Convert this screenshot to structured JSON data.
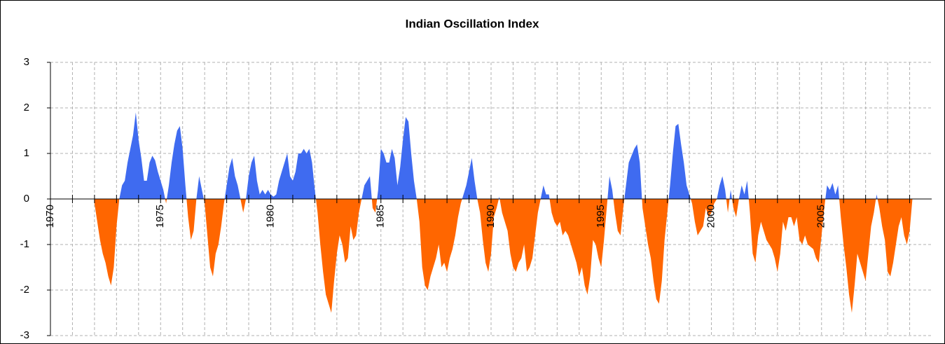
{
  "chart_data": {
    "type": "area",
    "title": "Indian Oscillation Index",
    "color_positive": "#3f6bf0",
    "color_negative": "#ff6600",
    "xlim": [
      1970,
      2010
    ],
    "xticks": [
      1970,
      1975,
      1980,
      1985,
      1990,
      1995,
      2000,
      2005
    ],
    "x_minor_ticks": [
      1970,
      1971,
      1972,
      1973,
      1974,
      1975,
      1976,
      1977,
      1978,
      1979,
      1980,
      1981,
      1982,
      1983,
      1984,
      1985,
      1986,
      1987,
      1988,
      1989,
      1990,
      1991,
      1992,
      1993,
      1994,
      1995,
      1996,
      1997,
      1998,
      1999,
      2000,
      2001,
      2002,
      2003,
      2004,
      2005,
      2006,
      2007,
      2008,
      2009
    ],
    "ylim": [
      -3,
      3
    ],
    "yticks": [
      -3,
      -2,
      -1,
      0,
      1,
      2,
      3
    ],
    "grid": true,
    "x": [
      1972,
      1972.125,
      1972.25,
      1972.375,
      1972.5,
      1972.625,
      1972.75,
      1972.875,
      1973,
      1973.125,
      1973.25,
      1973.375,
      1973.5,
      1973.625,
      1973.75,
      1973.875,
      1974,
      1974.125,
      1974.25,
      1974.375,
      1974.5,
      1974.625,
      1974.75,
      1974.875,
      1975,
      1975.125,
      1975.25,
      1975.375,
      1975.5,
      1975.625,
      1975.75,
      1975.875,
      1976,
      1976.125,
      1976.25,
      1976.375,
      1976.5,
      1976.625,
      1976.75,
      1976.875,
      1977,
      1977.125,
      1977.25,
      1977.375,
      1977.5,
      1977.625,
      1977.75,
      1977.875,
      1978,
      1978.125,
      1978.25,
      1978.375,
      1978.5,
      1978.625,
      1978.75,
      1978.875,
      1979,
      1979.125,
      1979.25,
      1979.375,
      1979.5,
      1979.625,
      1979.75,
      1979.875,
      1980,
      1980.125,
      1980.25,
      1980.375,
      1980.5,
      1980.625,
      1980.75,
      1980.875,
      1981,
      1981.125,
      1981.25,
      1981.375,
      1981.5,
      1981.625,
      1981.75,
      1981.875,
      1982,
      1982.125,
      1982.25,
      1982.375,
      1982.5,
      1982.625,
      1982.75,
      1982.875,
      1983,
      1983.125,
      1983.25,
      1983.375,
      1983.5,
      1983.625,
      1983.75,
      1983.875,
      1984,
      1984.125,
      1984.25,
      1984.375,
      1984.5,
      1984.625,
      1984.75,
      1984.875,
      1985,
      1985.125,
      1985.25,
      1985.375,
      1985.5,
      1985.625,
      1985.75,
      1985.875,
      1986,
      1986.125,
      1986.25,
      1986.375,
      1986.5,
      1986.625,
      1986.75,
      1986.875,
      1987,
      1987.125,
      1987.25,
      1987.375,
      1987.5,
      1987.625,
      1987.75,
      1987.875,
      1988,
      1988.125,
      1988.25,
      1988.375,
      1988.5,
      1988.625,
      1988.75,
      1988.875,
      1989,
      1989.125,
      1989.25,
      1989.375,
      1989.5,
      1989.625,
      1989.75,
      1989.875,
      1990,
      1990.125,
      1990.25,
      1990.375,
      1990.5,
      1990.625,
      1990.75,
      1990.875,
      1991,
      1991.125,
      1991.25,
      1991.375,
      1991.5,
      1991.625,
      1991.75,
      1991.875,
      1992,
      1992.125,
      1992.25,
      1992.375,
      1992.5,
      1992.625,
      1992.75,
      1992.875,
      1993,
      1993.125,
      1993.25,
      1993.375,
      1993.5,
      1993.625,
      1993.75,
      1993.875,
      1994,
      1994.125,
      1994.25,
      1994.375,
      1994.5,
      1994.625,
      1994.75,
      1994.875,
      1995,
      1995.125,
      1995.25,
      1995.375,
      1995.5,
      1995.625,
      1995.75,
      1995.875,
      1996,
      1996.125,
      1996.25,
      1996.375,
      1996.5,
      1996.625,
      1996.75,
      1996.875,
      1997,
      1997.125,
      1997.25,
      1997.375,
      1997.5,
      1997.625,
      1997.75,
      1997.875,
      1998,
      1998.125,
      1998.25,
      1998.375,
      1998.5,
      1998.625,
      1998.75,
      1998.875,
      1999,
      1999.125,
      1999.25,
      1999.375,
      1999.5,
      1999.625,
      1999.75,
      1999.875,
      2000,
      2000.125,
      2000.25,
      2000.375,
      2000.5,
      2000.625,
      2000.75,
      2000.875,
      2001,
      2001.125,
      2001.25,
      2001.375,
      2001.5,
      2001.625,
      2001.75,
      2001.875,
      2002,
      2002.125,
      2002.25,
      2002.375,
      2002.5,
      2002.625,
      2002.75,
      2002.875,
      2003,
      2003.125,
      2003.25,
      2003.375,
      2003.5,
      2003.625,
      2003.75,
      2003.875,
      2004,
      2004.125,
      2004.25,
      2004.375,
      2004.5,
      2004.625,
      2004.75,
      2004.875,
      2005,
      2005.125,
      2005.25,
      2005.375,
      2005.5,
      2005.625,
      2005.75,
      2005.875,
      2006,
      2006.125,
      2006.25,
      2006.375,
      2006.5,
      2006.625,
      2006.75,
      2006.875,
      2007,
      2007.125,
      2007.25,
      2007.375,
      2007.5,
      2007.625,
      2007.75,
      2007.875,
      2008,
      2008.125,
      2008.25,
      2008.375,
      2008.5,
      2008.625,
      2008.75,
      2008.875,
      2009,
      2009.125
    ],
    "values": [
      -0.1,
      -0.5,
      -0.9,
      -1.2,
      -1.4,
      -1.7,
      -1.9,
      -1.5,
      -0.6,
      0,
      0.3,
      0.4,
      0.8,
      1.1,
      1.4,
      1.9,
      1.3,
      0.9,
      0.4,
      0.4,
      0.8,
      0.95,
      0.85,
      0.6,
      0.4,
      0.2,
      -0.1,
      0.3,
      0.8,
      1.2,
      1.5,
      1.6,
      1.1,
      0.3,
      -0.4,
      -0.9,
      -0.7,
      0,
      0.5,
      0.2,
      -0.1,
      -0.8,
      -1.5,
      -1.7,
      -1.2,
      -1.0,
      -0.6,
      -0.1,
      0.3,
      0.7,
      0.9,
      0.5,
      0.3,
      0,
      -0.3,
      0,
      0.5,
      0.8,
      0.95,
      0.4,
      0.1,
      0.2,
      0.1,
      0.2,
      0.1,
      0.05,
      0.1,
      0.4,
      0.6,
      0.8,
      1.0,
      0.5,
      0.4,
      0.6,
      1.0,
      1.0,
      1.1,
      1.0,
      1.1,
      0.8,
      0.2,
      -0.3,
      -1.0,
      -1.6,
      -2.1,
      -2.3,
      -2.5,
      -1.8,
      -1.2,
      -0.8,
      -1.0,
      -1.4,
      -1.3,
      -0.6,
      -0.9,
      -0.8,
      -0.3,
      0,
      0.3,
      0.4,
      0.5,
      -0.2,
      -0.3,
      0.2,
      1.1,
      1.0,
      0.8,
      0.8,
      1.1,
      0.9,
      0.3,
      0.7,
      1.3,
      1.8,
      1.7,
      1.0,
      0.4,
      0,
      -0.5,
      -1.5,
      -1.9,
      -2.0,
      -1.7,
      -1.5,
      -1.3,
      -1.0,
      -1.5,
      -1.4,
      -1.6,
      -1.3,
      -1.1,
      -0.8,
      -0.4,
      -0.1,
      0.1,
      0.3,
      0.6,
      0.9,
      0.4,
      0,
      -0.3,
      -0.9,
      -1.4,
      -1.6,
      -1.2,
      -0.4,
      -0.2,
      0.05,
      -0.3,
      -0.5,
      -0.7,
      -1.2,
      -1.5,
      -1.6,
      -1.4,
      -1.3,
      -1.0,
      -1.6,
      -1.5,
      -1.3,
      -0.8,
      -0.3,
      0,
      0.3,
      0.1,
      0.1,
      -0.3,
      -0.5,
      -0.6,
      -0.5,
      -0.8,
      -0.7,
      -0.8,
      -1.0,
      -1.2,
      -1.4,
      -1.7,
      -1.5,
      -1.9,
      -2.1,
      -1.7,
      -0.9,
      -1.0,
      -1.3,
      -1.5,
      -0.9,
      -0.2,
      0.5,
      0.2,
      -0.3,
      -0.7,
      -0.8,
      -0.2,
      0.3,
      0.8,
      0.95,
      1.1,
      1.2,
      0.8,
      -0.2,
      -0.6,
      -1.0,
      -1.3,
      -1.8,
      -2.2,
      -2.3,
      -1.8,
      -0.9,
      -0.3,
      0.3,
      1.0,
      1.6,
      1.65,
      1.2,
      0.8,
      0.3,
      0.1,
      -0.1,
      -0.5,
      -0.8,
      -0.7,
      -0.6,
      -0.2,
      -0.4,
      -0.3,
      -0.1,
      0,
      0.3,
      0.5,
      0.2,
      -0.3,
      0.2,
      -0.2,
      -0.4,
      0,
      0.3,
      0.1,
      0.4,
      -0.3,
      -1.2,
      -1.4,
      -0.8,
      -0.5,
      -0.7,
      -0.9,
      -1.0,
      -1.1,
      -1.3,
      -1.6,
      -1.2,
      -0.5,
      -0.7,
      -0.4,
      -0.4,
      -0.6,
      -0.4,
      -0.9,
      -1.0,
      -0.8,
      -1.0,
      -1.05,
      -1.1,
      -1.3,
      -1.4,
      -0.8,
      -0.2,
      0.3,
      0.2,
      0.35,
      0.1,
      0.3,
      -0.4,
      -1.0,
      -1.5,
      -2.1,
      -2.5,
      -1.9,
      -1.2,
      -1.4,
      -1.6,
      -1.8,
      -1.2,
      -0.6,
      -0.3,
      0.1,
      -0.2,
      -0.6,
      -0.9,
      -1.6,
      -1.7,
      -1.4,
      -1.0,
      -0.6,
      -0.4,
      -0.8,
      -1.0,
      -0.7,
      0
    ]
  }
}
